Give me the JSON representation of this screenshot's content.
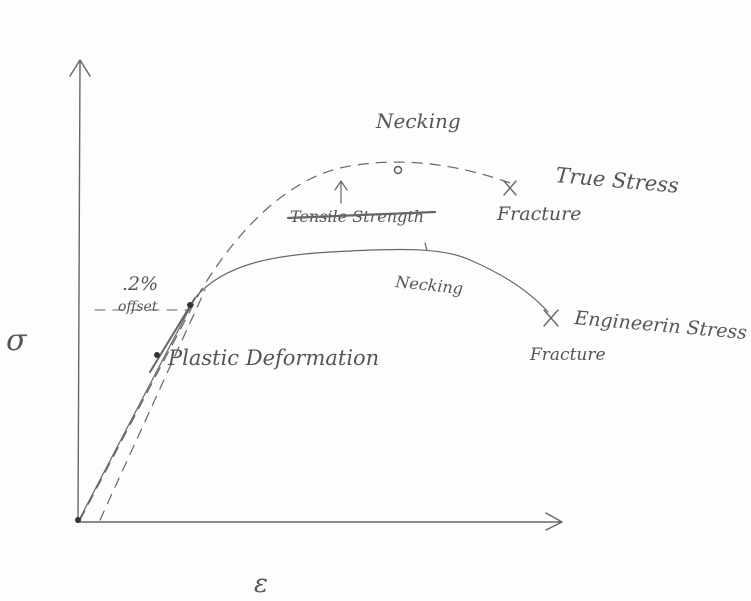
{
  "axes": {
    "y_label": "σ",
    "x_label": "ε"
  },
  "annotations": {
    "necking_true": "Necking",
    "true_stress": "True Stress",
    "true_fracture": "Fracture",
    "tensile_strength": "Tensile Strength",
    "necking_engineering": "Necking",
    "offset_percent": ".2%",
    "offset": "offset",
    "plastic_deformation": "Plastic Deformation",
    "engineering_stress": "Engineerin Stress",
    "engineering_fracture": "Fracture"
  }
}
